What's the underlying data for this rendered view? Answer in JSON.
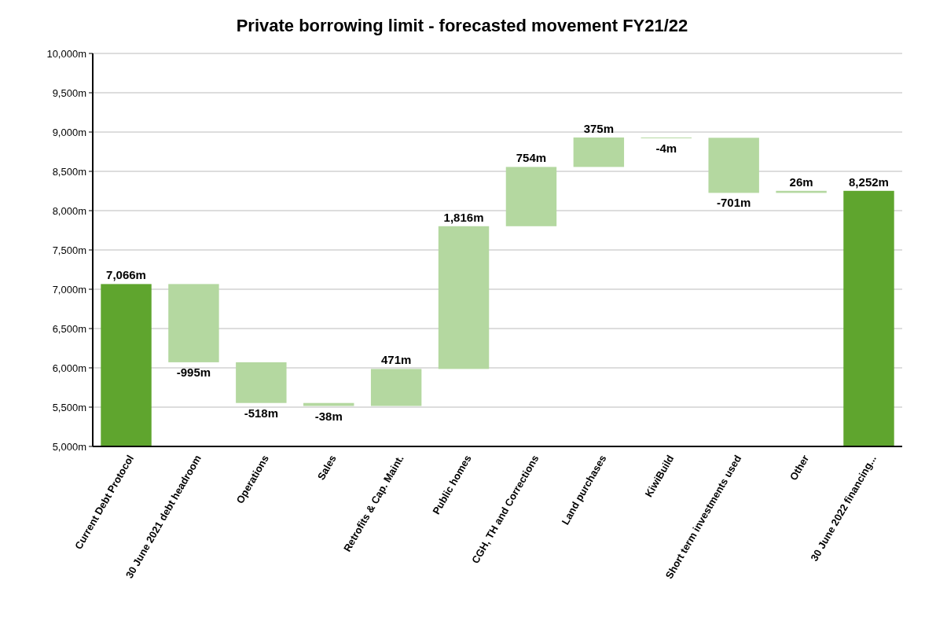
{
  "chart_data": {
    "type": "bar",
    "title": "Private borrowing limit - forecasted movement FY21/22",
    "categories": [
      "Current Debt Protocol",
      "30 June 2021 debt headroom",
      "Operations",
      "Sales",
      "Retrofits & Cap. Maint.",
      "Public homes",
      "CGH, TH and Corrections",
      "Land purchases",
      "KiwiBuild",
      "Short term investments used",
      "Other",
      "30 June 2022 financing..."
    ],
    "values": [
      7066,
      -995,
      -518,
      -38,
      471,
      1816,
      754,
      375,
      -4,
      -701,
      26,
      8252
    ],
    "base": [
      null,
      7066,
      6071,
      5553,
      5515,
      5986,
      7802,
      8556,
      8931,
      8927,
      8226,
      null
    ],
    "colors": [
      "#5fa52e",
      "#b4d8a0",
      "#b4d8a0",
      "#b4d8a0",
      "#b4d8a0",
      "#b4d8a0",
      "#b4d8a0",
      "#b4d8a0",
      "#b4d8a0",
      "#b4d8a0",
      "#b4d8a0",
      "#5fa52e"
    ],
    "value_labels": [
      "7,066m",
      "-995m",
      "-518m",
      "-38m",
      "471m",
      "1,816m",
      "754m",
      "375m",
      "-4m",
      "-701m",
      "26m",
      "8,252m"
    ],
    "ylim": [
      5000,
      10000
    ],
    "yticks": [
      {
        "value": 5000,
        "label": "5,000m"
      },
      {
        "value": 5500,
        "label": "5,500m"
      },
      {
        "value": 6000,
        "label": "6,000m"
      },
      {
        "value": 6500,
        "label": "6,500m"
      },
      {
        "value": 7000,
        "label": "7,000m"
      },
      {
        "value": 7500,
        "label": "7,500m"
      },
      {
        "value": 8000,
        "label": "8,000m"
      },
      {
        "value": 8500,
        "label": "8,500m"
      },
      {
        "value": 9000,
        "label": "9,000m"
      },
      {
        "value": 9500,
        "label": "9,500m"
      },
      {
        "value": 10000,
        "label": "10,000m"
      }
    ],
    "grid": "y"
  }
}
